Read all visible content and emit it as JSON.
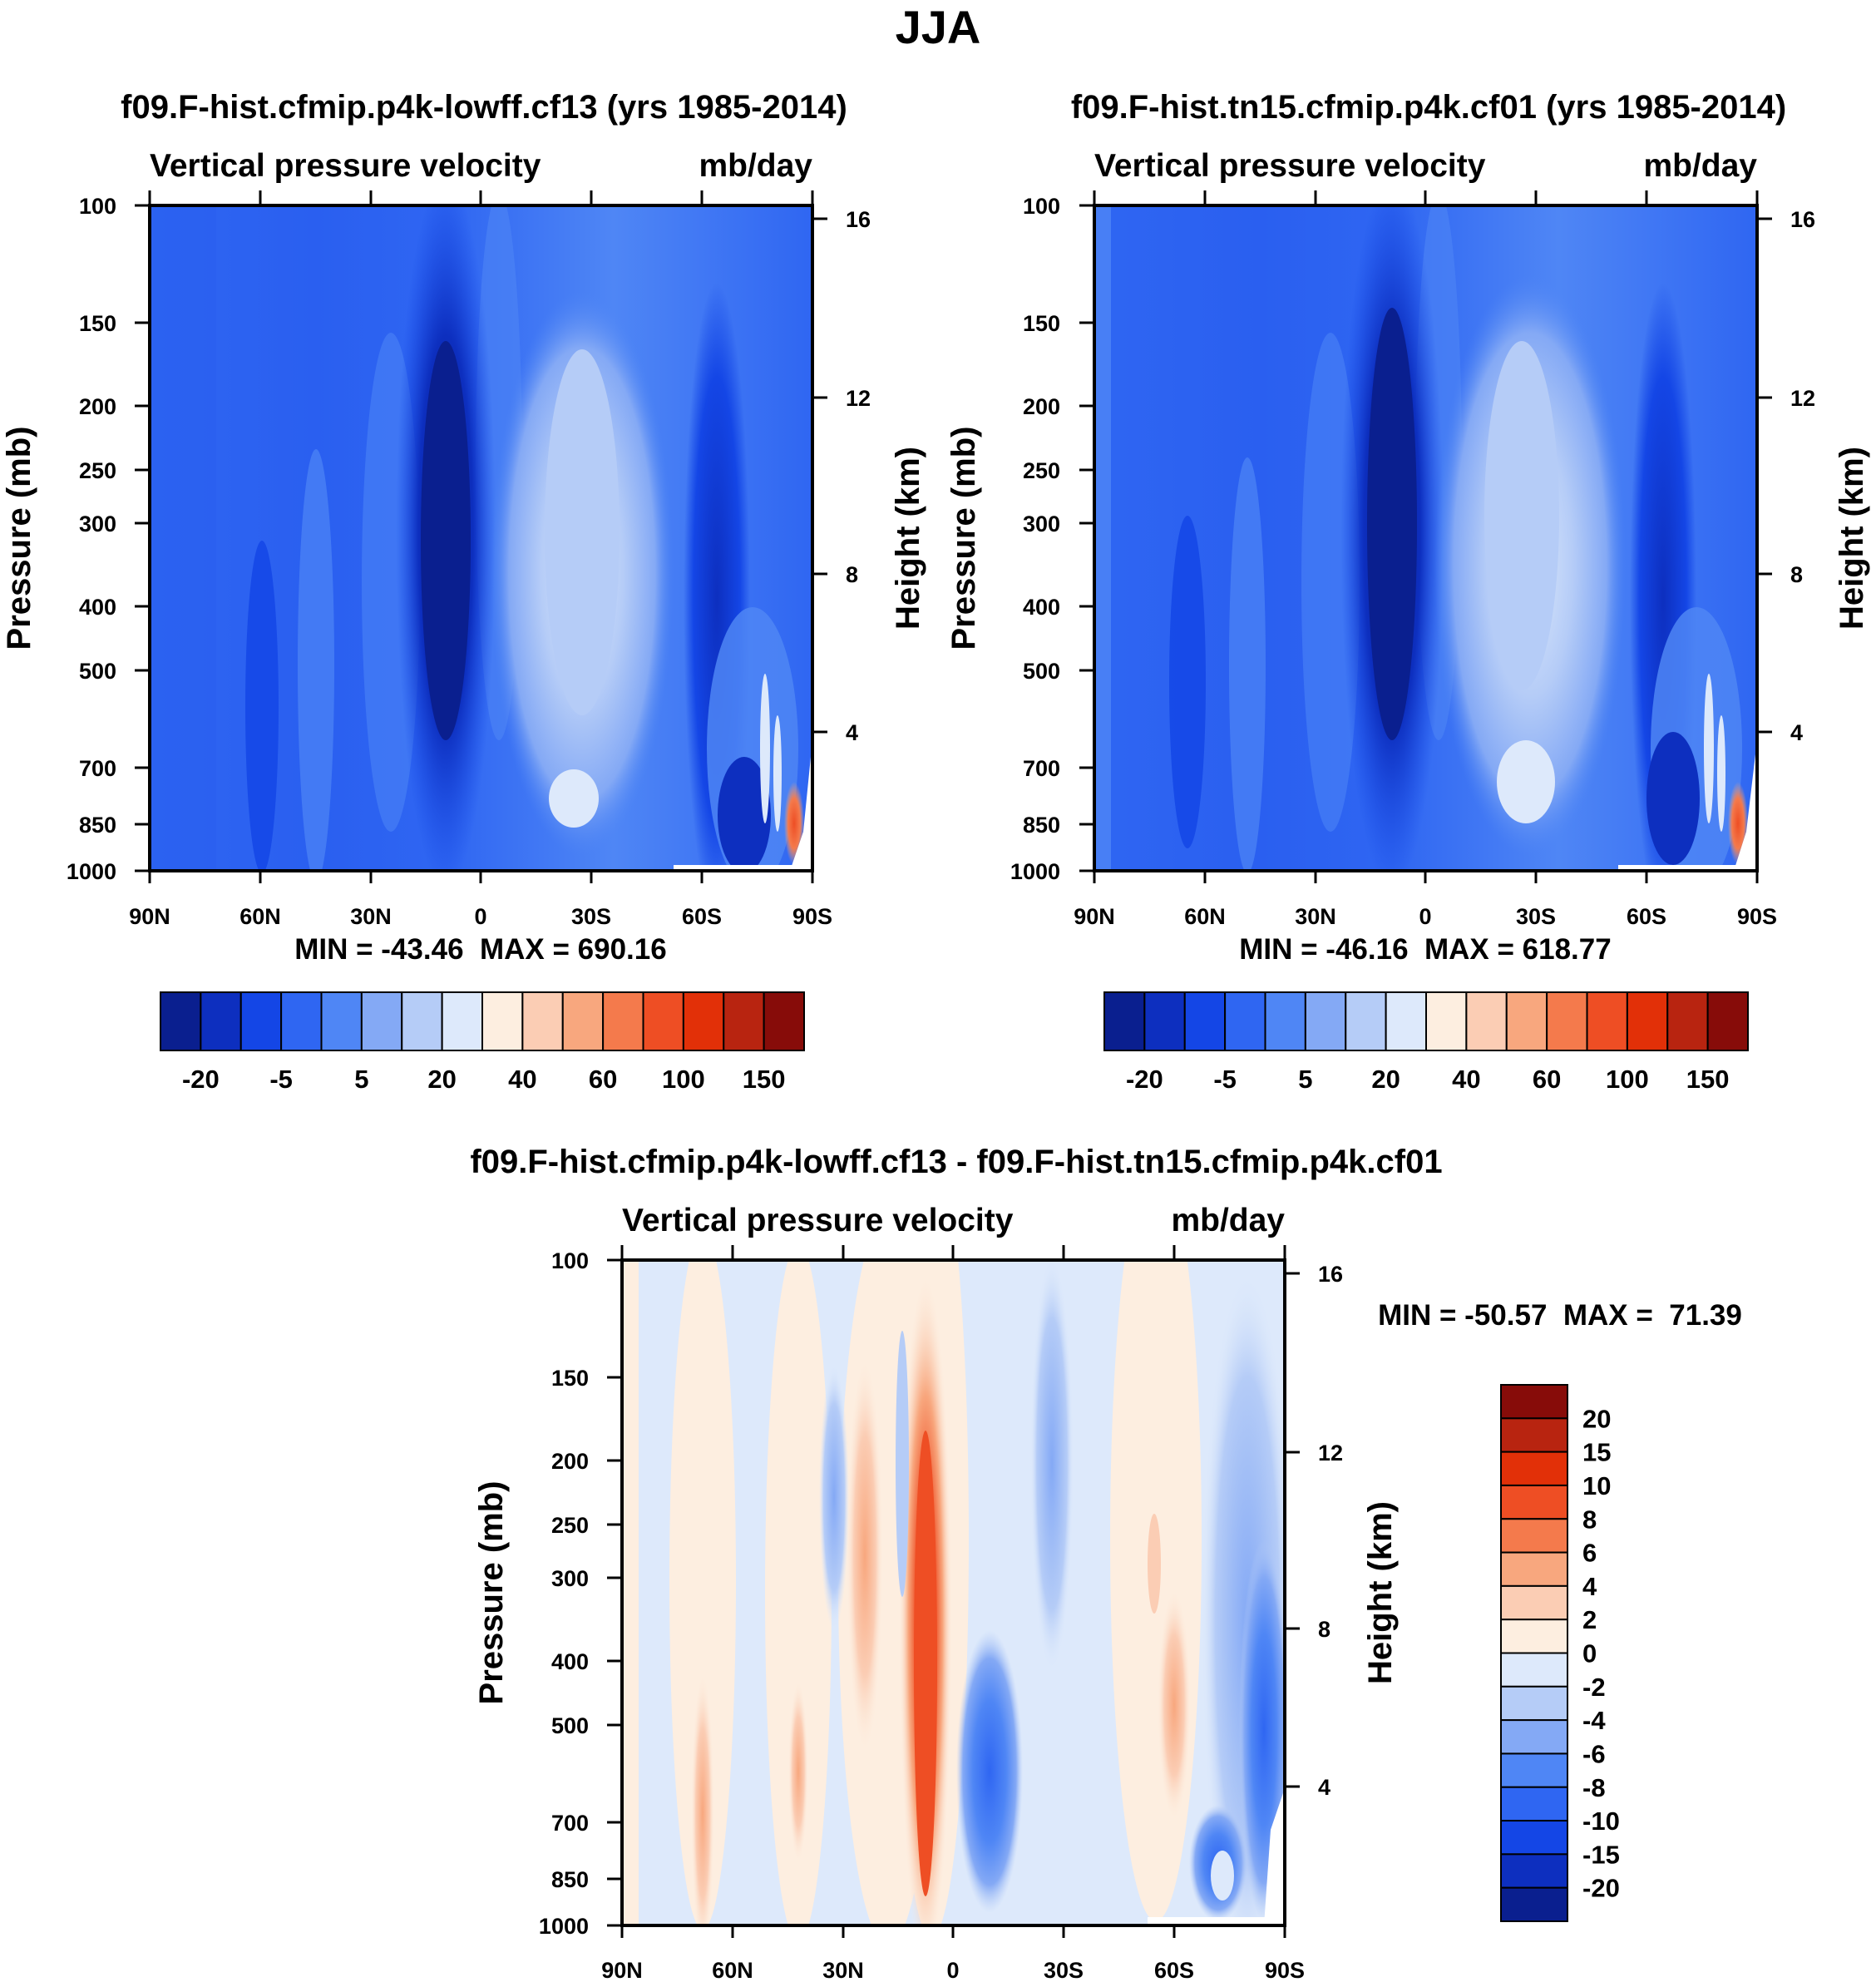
{
  "title": "JJA",
  "panels": [
    {
      "id": "case",
      "title": "f09.F-hist.cfmip.p4k-lowff.cf13 (yrs 1985-2014)",
      "variable": "Vertical pressure velocity",
      "units": "mb/day",
      "ylabel": "Pressure (mb)",
      "ylabel_right": "Height (km)",
      "stats": "MIN = -43.46  MAX = 690.16"
    },
    {
      "id": "reference",
      "title": "f09.F-hist.tn15.cfmip.p4k.cf01 (yrs 1985-2014)",
      "variable": "Vertical pressure velocity",
      "units": "mb/day",
      "ylabel": "Pressure (mb)",
      "ylabel_right": "Height (km)",
      "stats": "MIN = -46.16  MAX = 618.77"
    },
    {
      "id": "difference",
      "title": "f09.F-hist.cfmip.p4k-lowff.cf13 - f09.F-hist.tn15.cfmip.p4k.cf01",
      "variable": "Vertical pressure velocity",
      "units": "mb/day",
      "ylabel": "Pressure (mb)",
      "ylabel_right": "Height (km)",
      "stats": "MIN = -50.57  MAX =  71.39"
    }
  ],
  "chart_data": [
    {
      "type": "heatmap",
      "title": "f09.F-hist.cfmip.p4k-lowff.cf13 (yrs 1985-2014)",
      "x_ticks": [
        "90N",
        "60N",
        "30N",
        "0",
        "30S",
        "60S",
        "90S"
      ],
      "y_ticks": [
        100,
        150,
        200,
        250,
        300,
        400,
        500,
        700,
        850,
        1000
      ],
      "y_right_ticks": [
        16,
        12,
        8,
        4
      ],
      "ylim": [
        100,
        1000
      ],
      "y_scale": "log",
      "min": -43.46,
      "max": 690.16,
      "colorbar_labels": [
        "-20",
        "-5",
        "5",
        "20",
        "40",
        "60",
        "100",
        "150"
      ],
      "features": [
        {
          "lat": -10,
          "value": -22,
          "p_top": 130,
          "p_bot": 1000,
          "width_deg": 7
        },
        {
          "lat": 20,
          "value": 18,
          "p_top": 150,
          "p_bot": 950,
          "width_deg": 12
        },
        {
          "lat": 60,
          "value": -18,
          "p_top": 230,
          "p_bot": 1000,
          "width_deg": 5
        },
        {
          "lat": 85,
          "value": 120,
          "p_top": 800,
          "p_bot": 1000,
          "width_deg": 2
        }
      ]
    },
    {
      "type": "heatmap",
      "title": "f09.F-hist.tn15.cfmip.p4k.cf01 (yrs 1985-2014)",
      "x_ticks": [
        "90N",
        "60N",
        "30N",
        "0",
        "30S",
        "60S",
        "90S"
      ],
      "y_ticks": [
        100,
        150,
        200,
        250,
        300,
        400,
        500,
        700,
        850,
        1000
      ],
      "y_right_ticks": [
        16,
        12,
        8,
        4
      ],
      "ylim": [
        100,
        1000
      ],
      "y_scale": "log",
      "min": -46.16,
      "max": 618.77,
      "colorbar_labels": [
        "-20",
        "-5",
        "5",
        "20",
        "40",
        "60",
        "100",
        "150"
      ],
      "features": [
        {
          "lat": -10,
          "value": -22,
          "p_top": 125,
          "p_bot": 1000,
          "width_deg": 7
        },
        {
          "lat": 20,
          "value": 19,
          "p_top": 140,
          "p_bot": 950,
          "width_deg": 12
        },
        {
          "lat": 62,
          "value": -18,
          "p_top": 230,
          "p_bot": 1000,
          "width_deg": 5
        },
        {
          "lat": 85,
          "value": 110,
          "p_top": 800,
          "p_bot": 1000,
          "width_deg": 2
        }
      ]
    },
    {
      "type": "heatmap",
      "title": "f09.F-hist.cfmip.p4k-lowff.cf13 - f09.F-hist.tn15.cfmip.p4k.cf01",
      "x_ticks": [
        "90N",
        "60N",
        "30N",
        "0",
        "30S",
        "60S",
        "90S"
      ],
      "y_ticks": [
        100,
        150,
        200,
        250,
        300,
        400,
        500,
        700,
        850,
        1000
      ],
      "y_right_ticks": [
        16,
        12,
        8,
        4
      ],
      "ylim": [
        100,
        1000
      ],
      "y_scale": "log",
      "min": -50.57,
      "max": 71.39,
      "colorbar_labels": [
        "20",
        "15",
        "10",
        "8",
        "6",
        "4",
        "2",
        "0",
        "-2",
        "-4",
        "-6",
        "-8",
        "-10",
        "-15",
        "-20"
      ],
      "features": [
        {
          "lat": -8,
          "value": 9,
          "p_top": 200,
          "p_bot": 1000,
          "width_deg": 3
        },
        {
          "lat": -25,
          "value": 4,
          "p_top": 150,
          "p_bot": 600,
          "width_deg": 4
        },
        {
          "lat": 10,
          "value": -6,
          "p_top": 550,
          "p_bot": 950,
          "width_deg": 4
        },
        {
          "lat": 50,
          "value": 2,
          "p_top": 100,
          "p_bot": 1000,
          "width_deg": 12
        },
        {
          "lat": -60,
          "value": 3,
          "p_top": 330,
          "p_bot": 1000,
          "width_deg": 4
        }
      ]
    }
  ],
  "colors": {
    "abs_cmap": [
      "#0a1f8f",
      "#0d2fbf",
      "#1446e6",
      "#2f66f2",
      "#4f86f5",
      "#84a9f5",
      "#b5ccf7",
      "#dde9fb",
      "#fdeee0",
      "#fbcdb4",
      "#f8a77e",
      "#f47a4c",
      "#ee4e24",
      "#e23008",
      "#b82410",
      "#870c09"
    ],
    "diff_cmap": [
      "#0a1f8f",
      "#0d2fbf",
      "#1446e6",
      "#2f66f2",
      "#4f86f5",
      "#84a9f5",
      "#b5ccf7",
      "#dde9fb",
      "#fdeee0",
      "#fbcdb4",
      "#f8a77e",
      "#f47a4c",
      "#ee4e24",
      "#e23008",
      "#b82410",
      "#870c09"
    ]
  }
}
